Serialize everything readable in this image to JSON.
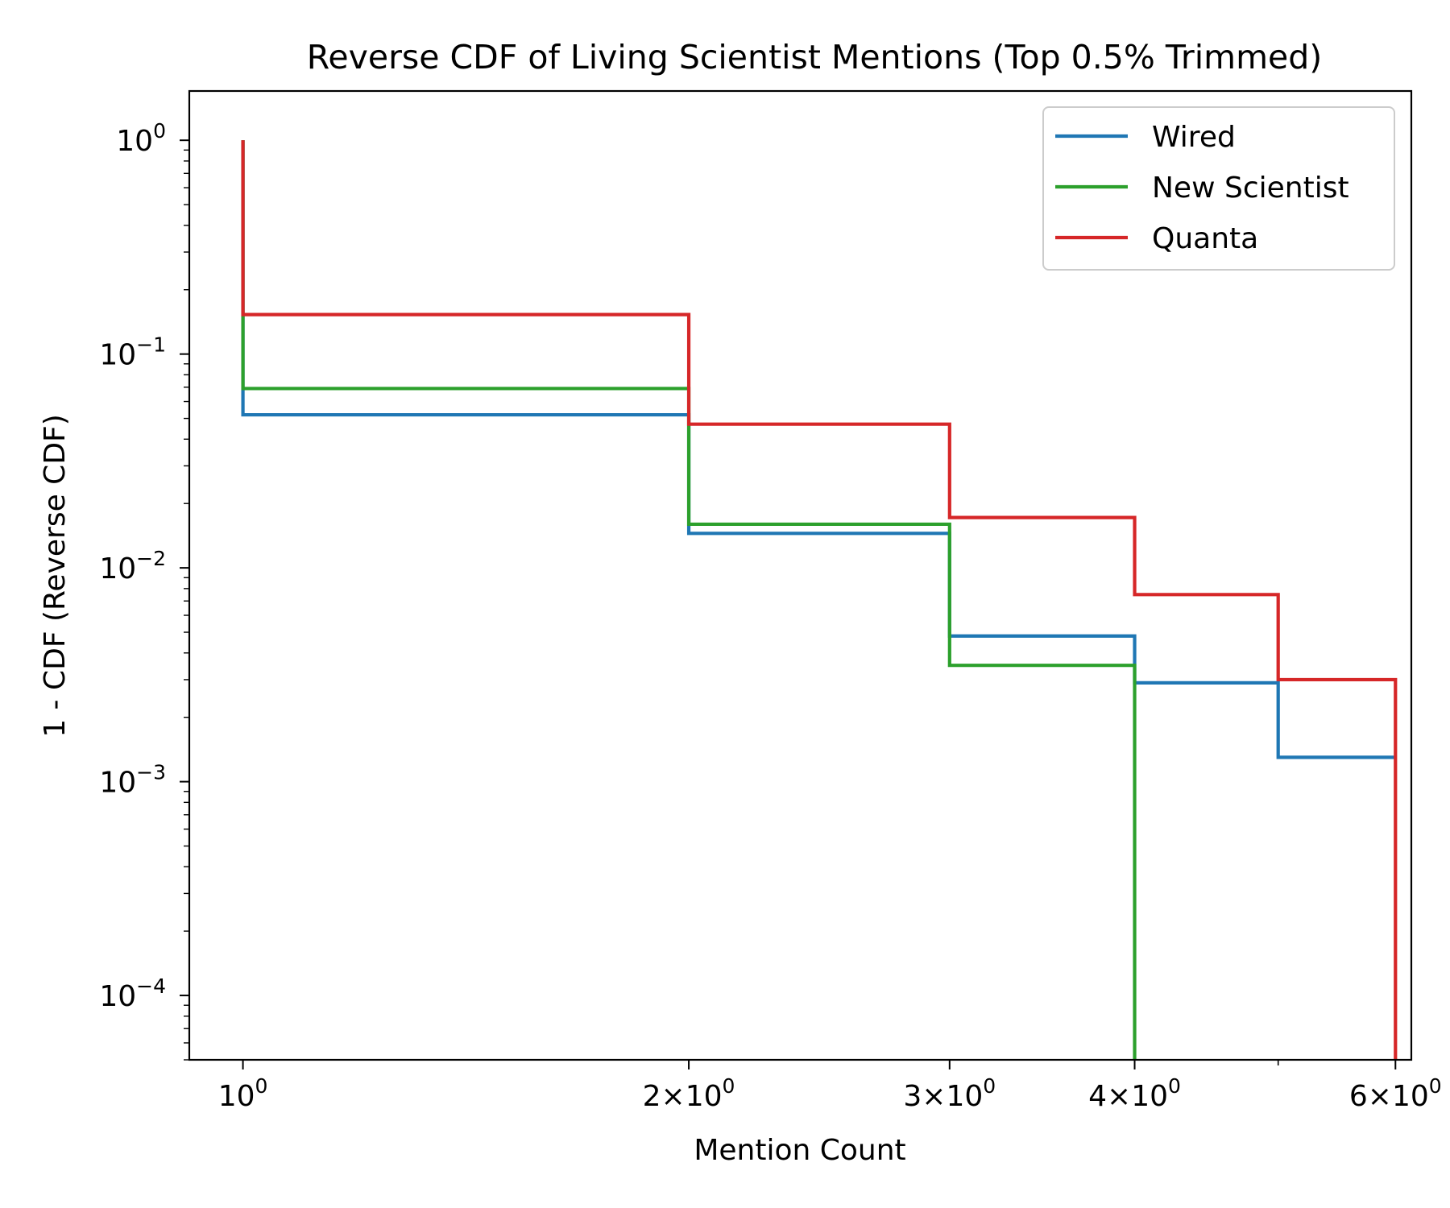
{
  "chart_data": {
    "type": "line",
    "step": "post",
    "title": "Reverse CDF of Living Scientist Mentions (Top 0.5% Trimmed)",
    "xlabel": "Mention Count",
    "ylabel": "1 - CDF (Reverse CDF)",
    "xscale": "log",
    "yscale": "log",
    "xlim": [
      0.92,
      6.15
    ],
    "ylim": [
      5e-05,
      1.7
    ],
    "xticks": [
      {
        "value": 1,
        "base": "10",
        "exp": "0",
        "mult": ""
      },
      {
        "value": 2,
        "base": "10",
        "exp": "0",
        "mult": "2×"
      },
      {
        "value": 3,
        "base": "10",
        "exp": "0",
        "mult": "3×"
      },
      {
        "value": 4,
        "base": "10",
        "exp": "0",
        "mult": "4×"
      },
      {
        "value": 6,
        "base": "10",
        "exp": "0",
        "mult": "6×"
      }
    ],
    "yticks": [
      {
        "value": 1,
        "base": "10",
        "exp": "0"
      },
      {
        "value": 0.1,
        "base": "10",
        "exp": "−1"
      },
      {
        "value": 0.01,
        "base": "10",
        "exp": "−2"
      },
      {
        "value": 0.001,
        "base": "10",
        "exp": "−3"
      },
      {
        "value": 0.0001,
        "base": "10",
        "exp": "−4"
      }
    ],
    "grid": false,
    "legend_position": "top-right",
    "series": [
      {
        "name": "Wired",
        "color": "#1f77b4",
        "x": [
          1,
          1,
          2,
          3,
          4,
          5,
          6
        ],
        "y": [
          1.0,
          0.052,
          0.0145,
          0.0048,
          0.0029,
          0.0013,
          0.0013
        ]
      },
      {
        "name": "New Scientist",
        "color": "#2ca02c",
        "x": [
          1,
          1,
          2,
          3,
          4
        ],
        "y": [
          1.0,
          0.069,
          0.016,
          0.0035,
          1e-07
        ]
      },
      {
        "name": "Quanta",
        "color": "#d62728",
        "x": [
          1,
          1,
          2,
          3,
          4,
          5,
          6
        ],
        "y": [
          1.0,
          0.153,
          0.047,
          0.0172,
          0.0075,
          0.003,
          1e-07
        ]
      }
    ]
  }
}
